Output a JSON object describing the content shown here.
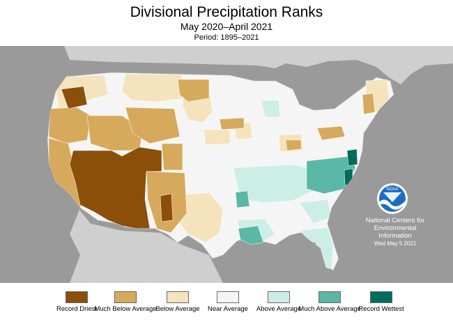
{
  "header": {
    "title": "Divisional Precipitation Ranks",
    "subtitle": "May 2020–April 2021",
    "period": "Period: 1895–2021"
  },
  "credits": {
    "org_line1": "National Centers for",
    "org_line2": "Environmental",
    "org_line3": "Information",
    "date": "Wed May  5 2021",
    "logo_text": "NOAA"
  },
  "colors": {
    "record_driest": "#8b4f0a",
    "much_below": "#d7a95c",
    "below": "#f4e3bc",
    "near": "#f5f5f5",
    "above": "#cdeee6",
    "much_above": "#5bb7a6",
    "record_wettest": "#006d5b",
    "water": "#9a9a9a",
    "outside_land": "#cfcfcf"
  },
  "legend": [
    {
      "label": "Record Driest",
      "color": "#8b4f0a"
    },
    {
      "label": "Much Below Average",
      "color": "#d7a95c"
    },
    {
      "label": "Below Average",
      "color": "#f4e3bc"
    },
    {
      "label": "Near Average",
      "color": "#f5f5f5"
    },
    {
      "label": "Above Average",
      "color": "#cdeee6"
    },
    {
      "label": "Much Above Average",
      "color": "#5bb7a6"
    },
    {
      "label": "Record Wettest",
      "color": "#006d5b"
    }
  ]
}
